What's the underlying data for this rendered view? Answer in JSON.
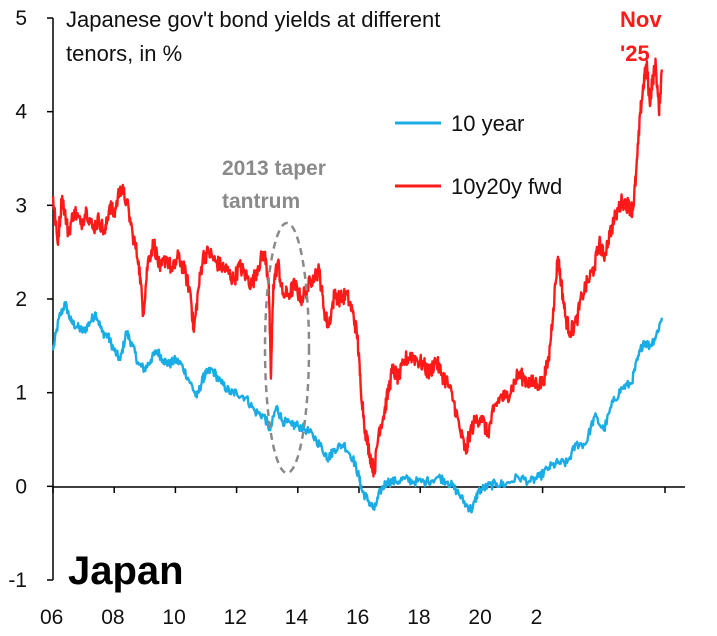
{
  "chart_data": {
    "type": "line",
    "title_line1": "Japanese gov't bond yields at different",
    "title_line2": "tenors, in %",
    "country_label": "Japan",
    "x_ticks": [
      "06",
      "08",
      "10",
      "12",
      "14",
      "16",
      "18",
      "20",
      "2"
    ],
    "y_ticks": [
      "5",
      "4",
      "3",
      "2",
      "1",
      "0",
      "-1"
    ],
    "xlim": [
      2006,
      2026
    ],
    "ylim": [
      -1,
      5
    ],
    "legend": [
      {
        "name": "10 year",
        "color": "#19ace5"
      },
      {
        "name": "10y20y fwd",
        "color": "#ff1a1a"
      }
    ],
    "annotations": {
      "taper_line1": "2013 taper",
      "taper_line2": "tantrum",
      "nov_line1": "Nov",
      "nov_line2": "'25"
    },
    "series": [
      {
        "name": "10 year",
        "color": "#19ace5",
        "points": [
          [
            2006.0,
            1.45
          ],
          [
            2006.2,
            1.8
          ],
          [
            2006.4,
            1.95
          ],
          [
            2006.6,
            1.75
          ],
          [
            2006.8,
            1.7
          ],
          [
            2007.0,
            1.65
          ],
          [
            2007.2,
            1.75
          ],
          [
            2007.4,
            1.85
          ],
          [
            2007.6,
            1.65
          ],
          [
            2007.8,
            1.6
          ],
          [
            2008.0,
            1.45
          ],
          [
            2008.2,
            1.35
          ],
          [
            2008.4,
            1.65
          ],
          [
            2008.6,
            1.5
          ],
          [
            2008.8,
            1.3
          ],
          [
            2009.0,
            1.25
          ],
          [
            2009.2,
            1.35
          ],
          [
            2009.4,
            1.45
          ],
          [
            2009.6,
            1.35
          ],
          [
            2009.8,
            1.3
          ],
          [
            2010.0,
            1.35
          ],
          [
            2010.2,
            1.3
          ],
          [
            2010.5,
            1.1
          ],
          [
            2010.7,
            0.95
          ],
          [
            2010.9,
            1.15
          ],
          [
            2011.0,
            1.2
          ],
          [
            2011.2,
            1.25
          ],
          [
            2011.5,
            1.1
          ],
          [
            2011.8,
            1.0
          ],
          [
            2012.0,
            1.0
          ],
          [
            2012.3,
            0.95
          ],
          [
            2012.6,
            0.8
          ],
          [
            2012.9,
            0.75
          ],
          [
            2013.1,
            0.6
          ],
          [
            2013.3,
            0.85
          ],
          [
            2013.5,
            0.7
          ],
          [
            2013.8,
            0.65
          ],
          [
            2014.0,
            0.65
          ],
          [
            2014.3,
            0.6
          ],
          [
            2014.6,
            0.5
          ],
          [
            2014.9,
            0.35
          ],
          [
            2015.0,
            0.3
          ],
          [
            2015.2,
            0.4
          ],
          [
            2015.5,
            0.45
          ],
          [
            2015.8,
            0.3
          ],
          [
            2016.0,
            0.1
          ],
          [
            2016.1,
            -0.05
          ],
          [
            2016.3,
            -0.15
          ],
          [
            2016.5,
            -0.25
          ],
          [
            2016.7,
            -0.05
          ],
          [
            2016.9,
            0.05
          ],
          [
            2017.2,
            0.05
          ],
          [
            2017.5,
            0.08
          ],
          [
            2017.8,
            0.05
          ],
          [
            2018.2,
            0.05
          ],
          [
            2018.6,
            0.1
          ],
          [
            2018.9,
            0.05
          ],
          [
            2019.2,
            -0.05
          ],
          [
            2019.5,
            -0.2
          ],
          [
            2019.7,
            -0.25
          ],
          [
            2019.9,
            -0.05
          ],
          [
            2020.2,
            0.0
          ],
          [
            2020.5,
            0.03
          ],
          [
            2020.8,
            0.02
          ],
          [
            2021.2,
            0.1
          ],
          [
            2021.6,
            0.05
          ],
          [
            2021.9,
            0.1
          ],
          [
            2022.2,
            0.2
          ],
          [
            2022.5,
            0.25
          ],
          [
            2022.8,
            0.25
          ],
          [
            2023.1,
            0.45
          ],
          [
            2023.4,
            0.45
          ],
          [
            2023.7,
            0.75
          ],
          [
            2024.0,
            0.6
          ],
          [
            2024.3,
            0.9
          ],
          [
            2024.6,
            1.05
          ],
          [
            2024.9,
            1.1
          ],
          [
            2025.1,
            1.35
          ],
          [
            2025.3,
            1.55
          ],
          [
            2025.5,
            1.5
          ],
          [
            2025.7,
            1.6
          ],
          [
            2025.9,
            1.8
          ]
        ]
      },
      {
        "name": "10y20y fwd",
        "color": "#ff1a1a",
        "points": [
          [
            2006.0,
            3.1
          ],
          [
            2006.15,
            2.6
          ],
          [
            2006.3,
            3.1
          ],
          [
            2006.5,
            2.7
          ],
          [
            2006.7,
            2.95
          ],
          [
            2006.9,
            2.8
          ],
          [
            2007.1,
            2.95
          ],
          [
            2007.3,
            2.75
          ],
          [
            2007.5,
            2.85
          ],
          [
            2007.7,
            2.7
          ],
          [
            2007.85,
            3.0
          ],
          [
            2008.0,
            2.9
          ],
          [
            2008.2,
            3.2
          ],
          [
            2008.4,
            3.05
          ],
          [
            2008.6,
            2.7
          ],
          [
            2008.8,
            2.4
          ],
          [
            2008.95,
            1.85
          ],
          [
            2009.1,
            2.4
          ],
          [
            2009.3,
            2.6
          ],
          [
            2009.5,
            2.3
          ],
          [
            2009.7,
            2.45
          ],
          [
            2009.9,
            2.3
          ],
          [
            2010.1,
            2.45
          ],
          [
            2010.3,
            2.3
          ],
          [
            2010.5,
            2.05
          ],
          [
            2010.6,
            1.65
          ],
          [
            2010.75,
            2.1
          ],
          [
            2010.9,
            2.45
          ],
          [
            2011.1,
            2.5
          ],
          [
            2011.3,
            2.4
          ],
          [
            2011.5,
            2.35
          ],
          [
            2011.7,
            2.3
          ],
          [
            2011.9,
            2.2
          ],
          [
            2012.1,
            2.35
          ],
          [
            2012.3,
            2.25
          ],
          [
            2012.5,
            2.15
          ],
          [
            2012.7,
            2.35
          ],
          [
            2012.9,
            2.5
          ],
          [
            2013.05,
            2.2
          ],
          [
            2013.12,
            1.15
          ],
          [
            2013.2,
            2.15
          ],
          [
            2013.35,
            2.4
          ],
          [
            2013.5,
            2.05
          ],
          [
            2013.7,
            2.05
          ],
          [
            2013.9,
            2.15
          ],
          [
            2014.1,
            2.0
          ],
          [
            2014.3,
            2.1
          ],
          [
            2014.5,
            2.25
          ],
          [
            2014.7,
            2.3
          ],
          [
            2014.85,
            1.9
          ],
          [
            2015.0,
            1.7
          ],
          [
            2015.2,
            2.05
          ],
          [
            2015.4,
            2.0
          ],
          [
            2015.6,
            2.05
          ],
          [
            2015.8,
            1.85
          ],
          [
            2015.95,
            1.6
          ],
          [
            2016.05,
            1.1
          ],
          [
            2016.2,
            0.6
          ],
          [
            2016.35,
            0.35
          ],
          [
            2016.5,
            0.15
          ],
          [
            2016.65,
            0.6
          ],
          [
            2016.8,
            0.75
          ],
          [
            2016.95,
            1.0
          ],
          [
            2017.1,
            1.25
          ],
          [
            2017.3,
            1.15
          ],
          [
            2017.5,
            1.35
          ],
          [
            2017.7,
            1.4
          ],
          [
            2017.9,
            1.35
          ],
          [
            2018.1,
            1.3
          ],
          [
            2018.3,
            1.2
          ],
          [
            2018.5,
            1.35
          ],
          [
            2018.7,
            1.2
          ],
          [
            2018.9,
            1.1
          ],
          [
            2019.1,
            0.9
          ],
          [
            2019.3,
            0.6
          ],
          [
            2019.5,
            0.35
          ],
          [
            2019.6,
            0.55
          ],
          [
            2019.8,
            0.7
          ],
          [
            2020.0,
            0.75
          ],
          [
            2020.2,
            0.55
          ],
          [
            2020.4,
            0.8
          ],
          [
            2020.6,
            0.95
          ],
          [
            2020.8,
            0.95
          ],
          [
            2021.0,
            1.05
          ],
          [
            2021.2,
            1.2
          ],
          [
            2021.4,
            1.15
          ],
          [
            2021.6,
            1.1
          ],
          [
            2021.8,
            1.1
          ],
          [
            2022.0,
            1.1
          ],
          [
            2022.2,
            1.35
          ],
          [
            2022.35,
            1.9
          ],
          [
            2022.5,
            2.45
          ],
          [
            2022.6,
            2.2
          ],
          [
            2022.75,
            1.8
          ],
          [
            2022.9,
            1.65
          ],
          [
            2023.1,
            1.75
          ],
          [
            2023.3,
            2.05
          ],
          [
            2023.5,
            2.2
          ],
          [
            2023.7,
            2.35
          ],
          [
            2023.85,
            2.6
          ],
          [
            2024.0,
            2.45
          ],
          [
            2024.2,
            2.7
          ],
          [
            2024.4,
            2.9
          ],
          [
            2024.6,
            3.05
          ],
          [
            2024.8,
            3.0
          ],
          [
            2024.95,
            2.95
          ],
          [
            2025.05,
            3.3
          ],
          [
            2025.2,
            4.0
          ],
          [
            2025.3,
            4.3
          ],
          [
            2025.4,
            4.5
          ],
          [
            2025.5,
            4.1
          ],
          [
            2025.6,
            4.35
          ],
          [
            2025.7,
            4.5
          ],
          [
            2025.8,
            4.0
          ],
          [
            2025.9,
            4.45
          ]
        ]
      }
    ]
  }
}
